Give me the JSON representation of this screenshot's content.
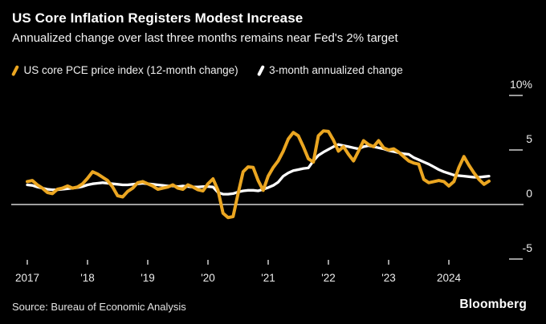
{
  "header": {
    "title": "US Core Inflation Registers Modest Increase",
    "subtitle": "Annualized change over last three months remains near Fed's 2% target"
  },
  "legend": {
    "items": [
      {
        "label": "US core PCE price index (12-month change)",
        "color": "#eba621"
      },
      {
        "label": "3-month annualized change",
        "color": "#ffffff"
      }
    ]
  },
  "footer": {
    "source": "Source: Bureau of Economic Analysis",
    "logo": "Bloomberg"
  },
  "chart_data": {
    "type": "line",
    "title": "US Core Inflation Registers Modest Increase",
    "subtitle": "Annualized change over last three months remains near Fed's 2% target",
    "unit": "%",
    "x_interval": "monthly",
    "x_start": {
      "year": 2017,
      "month": 1
    },
    "x_end": {
      "year": 2024,
      "month": 9
    },
    "legend_position": "top",
    "grid": "none",
    "zero_line": true,
    "axis_side": "right",
    "ylim": [
      -6.5,
      10.5
    ],
    "y_ticks": [
      {
        "label": "10%",
        "value": 10
      },
      {
        "label": "5",
        "value": 5
      },
      {
        "label": "0",
        "value": 0
      },
      {
        "label": "-5",
        "value": -5
      }
    ],
    "x_ticks": [
      {
        "label": "2017",
        "year": 2017
      },
      {
        "label": "'18",
        "year": 2018
      },
      {
        "label": "'19",
        "year": 2019
      },
      {
        "label": "'20",
        "year": 2020
      },
      {
        "label": "'21",
        "year": 2021
      },
      {
        "label": "'22",
        "year": 2022
      },
      {
        "label": "'23",
        "year": 2023
      },
      {
        "label": "2024",
        "year": 2024
      }
    ],
    "series": [
      {
        "name": "US core PCE price index (12-month change)",
        "color": "#eba621",
        "values": [
          2.1,
          2.2,
          1.8,
          1.5,
          1.1,
          1.0,
          1.4,
          1.5,
          1.7,
          1.5,
          1.6,
          1.9,
          2.4,
          3.0,
          2.8,
          2.5,
          2.2,
          1.6,
          0.8,
          0.7,
          1.2,
          1.5,
          2.0,
          2.1,
          1.9,
          1.7,
          1.4,
          1.5,
          1.6,
          1.8,
          1.5,
          1.4,
          1.8,
          1.6,
          1.35,
          1.25,
          1.9,
          2.35,
          1.3,
          -0.8,
          -1.2,
          -1.1,
          1.0,
          3.0,
          3.45,
          3.4,
          2.2,
          1.3,
          2.6,
          3.4,
          4.0,
          4.9,
          6.0,
          6.6,
          6.3,
          5.3,
          4.2,
          3.9,
          6.3,
          6.75,
          6.7,
          5.9,
          4.9,
          5.3,
          4.6,
          4.0,
          4.9,
          5.85,
          5.5,
          5.3,
          5.85,
          5.2,
          5.0,
          5.1,
          4.8,
          4.4,
          4.0,
          3.8,
          3.7,
          2.3,
          2.0,
          2.1,
          2.2,
          2.1,
          1.7,
          2.1,
          3.4,
          4.4,
          3.6,
          2.9,
          2.3,
          1.85,
          2.15
        ]
      },
      {
        "name": "3-month annualized change",
        "color": "#ffffff",
        "values": [
          1.8,
          1.75,
          1.6,
          1.5,
          1.4,
          1.35,
          1.35,
          1.4,
          1.45,
          1.5,
          1.55,
          1.65,
          1.8,
          1.9,
          1.95,
          2.0,
          1.95,
          1.9,
          1.85,
          1.8,
          1.8,
          1.85,
          1.9,
          1.95,
          1.9,
          1.85,
          1.8,
          1.75,
          1.7,
          1.7,
          1.65,
          1.7,
          1.65,
          1.6,
          1.6,
          1.65,
          1.65,
          1.6,
          1.1,
          0.95,
          0.95,
          1.0,
          1.15,
          1.25,
          1.3,
          1.3,
          1.25,
          1.4,
          1.55,
          1.75,
          2.05,
          2.6,
          2.9,
          3.1,
          3.2,
          3.3,
          3.35,
          4.0,
          4.5,
          4.8,
          5.05,
          5.3,
          5.5,
          5.4,
          5.3,
          5.2,
          5.1,
          5.3,
          5.4,
          5.3,
          5.2,
          5.1,
          4.95,
          4.85,
          4.75,
          4.65,
          4.6,
          4.3,
          4.1,
          3.9,
          3.7,
          3.45,
          3.2,
          3.0,
          2.85,
          2.7,
          2.65,
          2.6,
          2.55,
          2.5,
          2.5,
          2.55,
          2.6
        ]
      }
    ]
  }
}
